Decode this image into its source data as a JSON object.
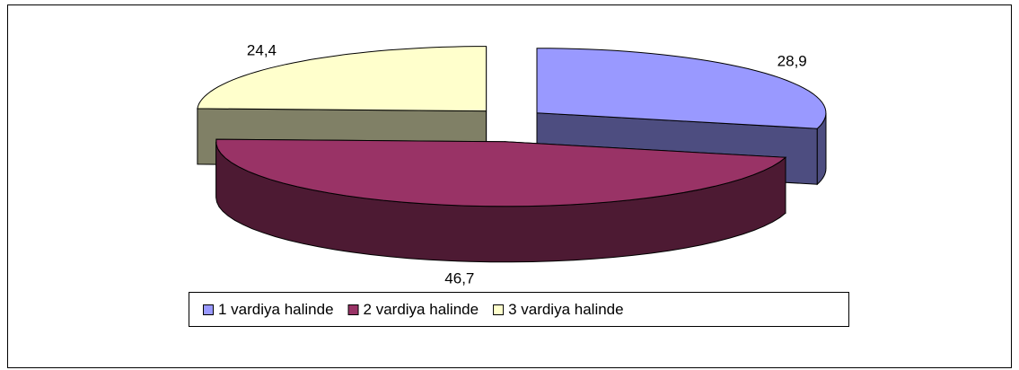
{
  "chart_data": {
    "type": "pie3d",
    "categories": [
      "1 vardiya halinde",
      "2 vardiya halinde",
      "3 vardiya halinde"
    ],
    "values": [
      28.9,
      46.7,
      24.4
    ],
    "value_labels": [
      "28,9",
      "46,7",
      "24,4"
    ],
    "colors": [
      "#9999ff",
      "#993366",
      "#ffffcc"
    ],
    "side_colors": [
      "#4d4d80",
      "#4d1a33",
      "#808066"
    ],
    "legend": "bottom"
  }
}
